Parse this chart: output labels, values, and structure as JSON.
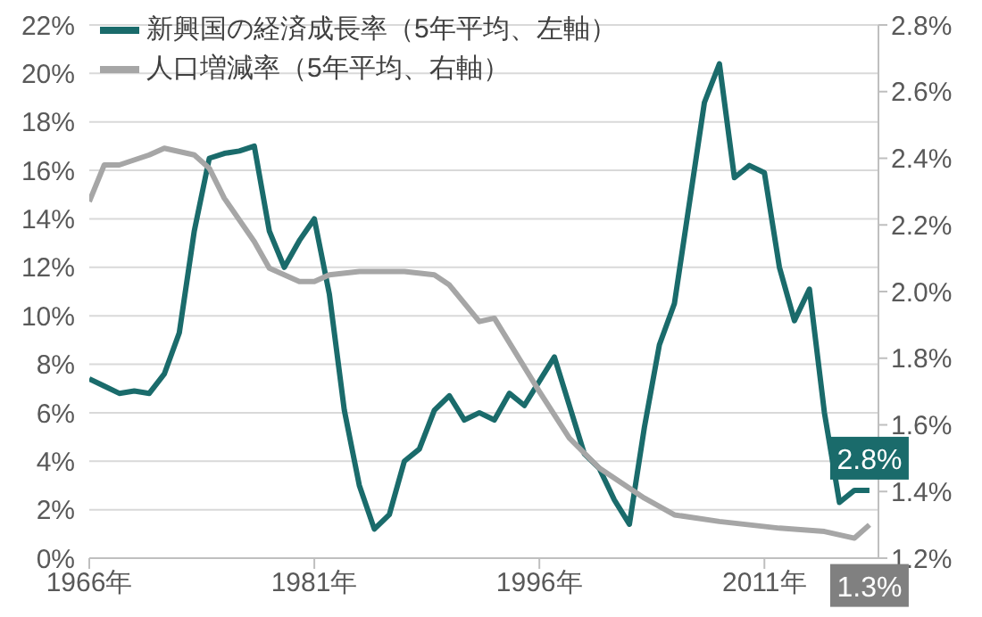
{
  "chart_data": {
    "type": "line",
    "xlim": [
      1966,
      2018.6
    ],
    "xticks": [
      {
        "value": 1966,
        "label": "1966年"
      },
      {
        "value": 1981,
        "label": "1981年"
      },
      {
        "value": 1996,
        "label": "1996年"
      },
      {
        "value": 2011,
        "label": "2011年"
      }
    ],
    "ylim": [
      0,
      22
    ],
    "yticks": [
      {
        "value": 0,
        "label": "0%"
      },
      {
        "value": 2,
        "label": "2%"
      },
      {
        "value": 4,
        "label": "4%"
      },
      {
        "value": 6,
        "label": "6%"
      },
      {
        "value": 8,
        "label": "8%"
      },
      {
        "value": 10,
        "label": "10%"
      },
      {
        "value": 12,
        "label": "12%"
      },
      {
        "value": 14,
        "label": "14%"
      },
      {
        "value": 16,
        "label": "16%"
      },
      {
        "value": 18,
        "label": "18%"
      },
      {
        "value": 20,
        "label": "20%"
      },
      {
        "value": 22,
        "label": "22%"
      }
    ],
    "y2lim": [
      1.2,
      2.8
    ],
    "y2ticks": [
      {
        "value": 1.2,
        "label": "1.2%"
      },
      {
        "value": 1.4,
        "label": "1.4%"
      },
      {
        "value": 1.6,
        "label": "1.6%"
      },
      {
        "value": 1.8,
        "label": "1.8%"
      },
      {
        "value": 2.0,
        "label": "2.0%"
      },
      {
        "value": 2.2,
        "label": "2.2%"
      },
      {
        "value": 2.4,
        "label": "2.4%"
      },
      {
        "value": 2.6,
        "label": "2.6%"
      },
      {
        "value": 2.8,
        "label": "2.8%"
      }
    ],
    "grid": "y",
    "legend": "top left",
    "marker": "none",
    "line_style": "solid",
    "series": [
      {
        "name": "新興国の経済成長率（5年平均、左軸）",
        "color": "#1a6b6b",
        "x": [
          1966,
          1967,
          1968,
          1969,
          1970,
          1971,
          1972,
          1973,
          1974,
          1975,
          1976,
          1977,
          1978,
          1979,
          1980,
          1981,
          1982,
          1983,
          1984,
          1985,
          1986,
          1987,
          1988,
          1989,
          1990,
          1991,
          1992,
          1993,
          1994,
          1995,
          1997,
          1999,
          2000,
          2001,
          2002,
          2003,
          2004,
          2005,
          2007,
          2008,
          2009,
          2010,
          2011,
          2012,
          2013,
          2014,
          2015,
          2016,
          2017,
          2018
        ],
        "values": [
          7.4,
          7.1,
          6.8,
          6.9,
          6.8,
          7.6,
          9.3,
          13.5,
          16.5,
          16.7,
          16.8,
          17.0,
          13.5,
          12.0,
          13.1,
          14.0,
          10.9,
          6.1,
          3.0,
          1.2,
          1.8,
          4.0,
          4.5,
          6.1,
          6.7,
          5.7,
          6.0,
          5.7,
          6.8,
          6.3,
          8.3,
          4.3,
          3.7,
          2.4,
          1.4,
          5.4,
          8.8,
          10.5,
          18.8,
          20.4,
          15.7,
          16.2,
          15.9,
          12.0,
          9.8,
          11.1,
          6.0,
          2.3,
          2.8,
          2.8
        ],
        "value_labels": [
          null,
          null,
          null,
          null,
          null,
          null,
          null,
          null,
          null,
          null,
          null,
          null,
          null,
          null,
          null,
          null,
          null,
          null,
          null,
          null,
          null,
          null,
          null,
          null,
          null,
          null,
          null,
          null,
          null,
          null,
          null,
          null,
          null,
          null,
          null,
          null,
          null,
          null,
          null,
          null,
          null,
          null,
          null,
          null,
          null,
          null,
          null,
          null,
          null,
          "2.8%"
        ]
      },
      {
        "name": "人口増減率（5年平均、右軸）",
        "color": "#a6a6a6",
        "axis": "y2",
        "x": [
          1966,
          1967,
          1968,
          1970,
          1971,
          1972,
          1973,
          1974,
          1975,
          1977,
          1978,
          1980,
          1981,
          1982,
          1984,
          1987,
          1989,
          1990,
          1992,
          1993,
          1996,
          1998,
          2000,
          2003,
          2005,
          2008,
          2010,
          2012,
          2015,
          2017,
          2018
        ],
        "values": [
          2.27,
          2.38,
          2.38,
          2.41,
          2.43,
          2.42,
          2.41,
          2.37,
          2.28,
          2.15,
          2.07,
          2.03,
          2.03,
          2.05,
          2.06,
          2.06,
          2.05,
          2.02,
          1.91,
          1.92,
          1.7,
          1.56,
          1.47,
          1.38,
          1.33,
          1.31,
          1.3,
          1.29,
          1.28,
          1.26,
          1.3
        ],
        "value_labels": [
          null,
          null,
          null,
          null,
          null,
          null,
          null,
          null,
          null,
          null,
          null,
          null,
          null,
          null,
          null,
          null,
          null,
          null,
          null,
          null,
          null,
          null,
          null,
          null,
          null,
          null,
          null,
          null,
          null,
          null,
          "1.3%"
        ]
      }
    ]
  }
}
